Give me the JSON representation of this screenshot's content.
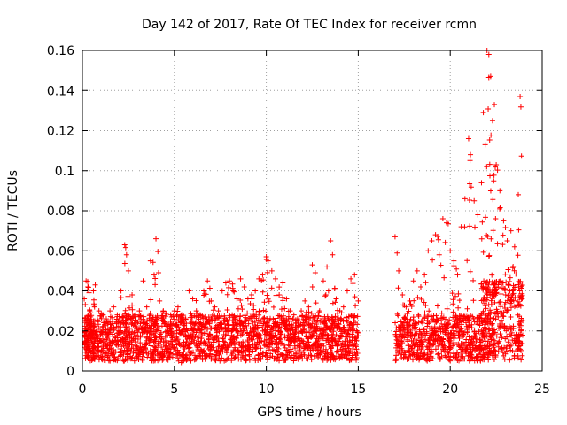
{
  "chart_data": {
    "type": "scatter",
    "title": "Day 142 of 2017, Rate Of TEC Index for receiver rcmn",
    "xlabel": "GPS time / hours",
    "ylabel": "ROTI / TECUs",
    "xlim": [
      0,
      25
    ],
    "ylim": [
      0,
      0.16
    ],
    "xticks": [
      0,
      5,
      10,
      15,
      20,
      25
    ],
    "yticks": [
      0,
      0.02,
      0.04,
      0.06,
      0.08,
      0.1,
      0.12,
      0.14,
      0.16
    ],
    "xtick_labels": [
      "0",
      "5",
      "10",
      "15",
      "20",
      "25"
    ],
    "ytick_labels": [
      "0",
      "0.02",
      "0.04",
      "0.06",
      "0.08",
      "0.1",
      "0.12",
      "0.14",
      "0.16"
    ],
    "grid": true,
    "marker": "+",
    "color": "#ff0000",
    "series": [
      {
        "x": [
          0.1,
          0.2,
          0.3,
          0.4,
          0.5,
          0.6,
          0.7,
          0.9,
          1.1,
          1.3,
          1.5,
          1.7,
          1.9,
          2.1,
          2.3,
          2.4,
          2.5,
          2.7,
          2.9,
          3.1,
          3.3,
          3.5,
          3.7,
          3.9,
          4.0,
          4.2,
          4.4,
          4.6,
          4.8,
          5.0,
          5.2,
          5.4,
          5.6,
          5.8,
          6.0,
          6.2,
          6.4,
          6.6,
          6.8,
          7.0,
          7.2,
          7.4,
          7.6,
          7.8,
          8.0,
          8.2,
          8.4,
          8.6,
          8.8,
          9.0,
          9.2,
          9.4,
          9.6,
          9.8,
          10.0,
          10.1,
          10.3,
          10.5,
          10.7,
          10.9,
          11.1,
          11.3,
          11.5,
          11.7,
          11.9,
          12.1,
          12.3,
          12.5,
          12.7,
          12.9,
          13.1,
          13.3,
          13.5,
          13.6,
          13.8,
          14.0,
          14.2,
          14.4,
          14.6,
          14.8,
          15.0,
          17.0,
          17.2,
          17.4,
          17.6,
          17.8,
          18.0,
          18.2,
          18.4,
          18.6,
          18.8,
          19.0,
          19.2,
          19.4,
          19.6,
          19.8,
          20.0,
          20.2,
          20.4,
          20.6,
          20.8,
          21.0,
          21.1,
          21.3,
          21.5,
          21.7,
          21.8,
          21.9,
          22.0,
          22.1,
          22.2,
          22.3,
          22.4,
          22.5,
          22.7,
          22.9,
          23.1,
          23.3,
          23.5,
          23.7,
          23.8
        ],
        "y": [
          0.036,
          0.045,
          0.042,
          0.03,
          0.025,
          0.04,
          0.043,
          0.03,
          0.028,
          0.026,
          0.03,
          0.032,
          0.028,
          0.04,
          0.063,
          0.058,
          0.05,
          0.038,
          0.028,
          0.03,
          0.045,
          0.032,
          0.055,
          0.048,
          0.066,
          0.035,
          0.03,
          0.025,
          0.028,
          0.03,
          0.032,
          0.028,
          0.026,
          0.04,
          0.036,
          0.03,
          0.028,
          0.04,
          0.045,
          0.035,
          0.032,
          0.03,
          0.04,
          0.044,
          0.045,
          0.04,
          0.036,
          0.046,
          0.042,
          0.036,
          0.038,
          0.04,
          0.046,
          0.048,
          0.057,
          0.055,
          0.05,
          0.046,
          0.038,
          0.044,
          0.036,
          0.03,
          0.028,
          0.026,
          0.03,
          0.035,
          0.032,
          0.053,
          0.034,
          0.03,
          0.045,
          0.052,
          0.065,
          0.058,
          0.036,
          0.03,
          0.032,
          0.04,
          0.046,
          0.048,
          0.035,
          0.067,
          0.05,
          0.038,
          0.032,
          0.035,
          0.045,
          0.05,
          0.042,
          0.048,
          0.06,
          0.065,
          0.068,
          0.058,
          0.076,
          0.074,
          0.06,
          0.055,
          0.048,
          0.072,
          0.086,
          0.116,
          0.108,
          0.085,
          0.078,
          0.094,
          0.129,
          0.113,
          0.16,
          0.158,
          0.147,
          0.125,
          0.133,
          0.103,
          0.09,
          0.075,
          0.065,
          0.07,
          0.062,
          0.088,
          0.137
        ],
        "y_floor": [
          0.005,
          0.006,
          0.006,
          0.005,
          0.005,
          0.005,
          0.005,
          0.005,
          0.005,
          0.005,
          0.005,
          0.005,
          0.005,
          0.005,
          0.005,
          0.005,
          0.005,
          0.005,
          0.005,
          0.005,
          0.005,
          0.005,
          0.005,
          0.005,
          0.005,
          0.005,
          0.005,
          0.005,
          0.005,
          0.004,
          0.004,
          0.005,
          0.005,
          0.005,
          0.005,
          0.005,
          0.005,
          0.005,
          0.005,
          0.005,
          0.005,
          0.005,
          0.005,
          0.005,
          0.005,
          0.005,
          0.005,
          0.005,
          0.005,
          0.005,
          0.005,
          0.005,
          0.005,
          0.005,
          0.005,
          0.005,
          0.005,
          0.005,
          0.005,
          0.005,
          0.005,
          0.005,
          0.005,
          0.005,
          0.005,
          0.005,
          0.005,
          0.005,
          0.005,
          0.005,
          0.005,
          0.005,
          0.005,
          0.005,
          0.005,
          0.005,
          0.005,
          0.005,
          0.005,
          0.005,
          0.005,
          0.005,
          0.005,
          0.005,
          0.005,
          0.005,
          0.005,
          0.005,
          0.005,
          0.005,
          0.005,
          0.005,
          0.005,
          0.005,
          0.005,
          0.005,
          0.005,
          0.005,
          0.005,
          0.005,
          0.005,
          0.004,
          0.005,
          0.005,
          0.005,
          0.005,
          0.005,
          0.005,
          0.005,
          0.005,
          0.005,
          0.005,
          0.005,
          0.005,
          0.005,
          0.005,
          0.005,
          0.005,
          0.005,
          0.005,
          0.005
        ]
      }
    ]
  }
}
